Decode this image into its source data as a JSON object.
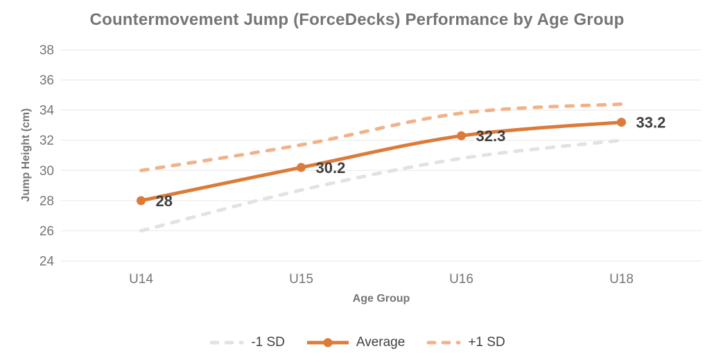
{
  "chart_data": {
    "type": "line",
    "title": "Countermovement Jump (ForceDecks) Performance by Age Group",
    "xlabel": "Age Group",
    "ylabel": "Jump Height (cm)",
    "categories": [
      "U14",
      "U15",
      "U16",
      "U18"
    ],
    "series": [
      {
        "name": "-1 SD",
        "values": [
          26,
          28.7,
          30.8,
          32
        ],
        "color": "#E2E2E2",
        "style": "dashed",
        "markers": false,
        "data_labels": false
      },
      {
        "name": "Average",
        "values": [
          28,
          30.2,
          32.3,
          33.2
        ],
        "color": "#DC7B39",
        "style": "solid",
        "markers": true,
        "data_labels": true
      },
      {
        "name": "+1 SD",
        "values": [
          30,
          31.7,
          33.8,
          34.4
        ],
        "color": "#F2B289",
        "style": "dashed",
        "markers": false,
        "data_labels": false
      }
    ],
    "data_label_texts": [
      "28",
      "30.2",
      "32.3",
      "33.2"
    ],
    "ylim": [
      24,
      38
    ],
    "ytick_step": 2,
    "yticks": [
      24,
      26,
      28,
      30,
      32,
      34,
      36,
      38
    ],
    "grid": "horizontal",
    "legend_position": "bottom",
    "colors": {
      "axis_text": "#757575",
      "grid": "#E7E7E7",
      "data_label": "#3F3F3F",
      "legend_text": "#404040",
      "background": "#FFFFFF"
    }
  }
}
